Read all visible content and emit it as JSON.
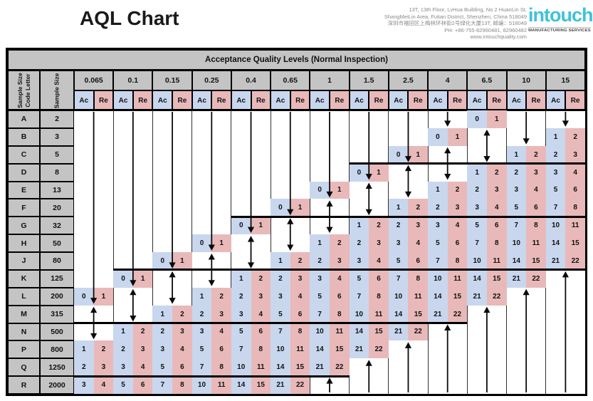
{
  "page": {
    "title": "AQL Chart"
  },
  "company": {
    "address_lines": [
      "13T, 13th Floor, LvHua Building, No 2 HuanLin St,",
      "ShangMeiLin Area, Futian District, Shenzhen, China 518049",
      "深圳市福田区上梅林环林街2号绿化大厦13T, 邮编：518049",
      "PH: +86-755-82960481, 82960482"
    ],
    "website": "www.intouchquality.com",
    "logo_text": "intouch",
    "logo_subtext": "MANUFACTURING SERVICES",
    "logo_color": "#3fc2d9"
  },
  "table": {
    "title": "Acceptance Quality Levels  (Normal Inspection)",
    "code_letter_header_lines": [
      "Sample Size",
      "Code Letter"
    ],
    "sample_size_header": "Sample Size",
    "ac_label": "Ac",
    "re_label": "Re",
    "aql_levels": [
      "0.065",
      "0.1",
      "0.15",
      "0.25",
      "0.4",
      "0.65",
      "1",
      "1.5",
      "2.5",
      "4",
      "6.5",
      "10",
      "15"
    ],
    "colors": {
      "ac_bg": "#c8d7ee",
      "re_bg": "#e9b9b9",
      "header_bg": "#c4c4c4",
      "line": "#0a0a0a"
    },
    "rows": [
      {
        "letter": "A",
        "size": "2",
        "cells": {
          "10": [
            0,
            1
          ]
        }
      },
      {
        "letter": "B",
        "size": "3",
        "cells": {
          "9": [
            0,
            1
          ],
          "12": [
            1,
            2
          ]
        }
      },
      {
        "letter": "C",
        "size": "5",
        "cells": {
          "8": [
            0,
            1
          ],
          "11": [
            1,
            2
          ],
          "12": [
            2,
            3
          ]
        }
      },
      {
        "letter": "D",
        "size": "8",
        "cells": {
          "7": [
            0,
            1
          ],
          "10": [
            1,
            2
          ],
          "11": [
            2,
            3
          ],
          "12": [
            3,
            4
          ]
        }
      },
      {
        "letter": "E",
        "size": "13",
        "cells": {
          "6": [
            0,
            1
          ],
          "9": [
            1,
            2
          ],
          "10": [
            2,
            3
          ],
          "11": [
            3,
            4
          ],
          "12": [
            5,
            6
          ]
        }
      },
      {
        "letter": "F",
        "size": "20",
        "cells": {
          "5": [
            0,
            1
          ],
          "8": [
            1,
            2
          ],
          "9": [
            2,
            3
          ],
          "10": [
            3,
            4
          ],
          "11": [
            5,
            6
          ],
          "12": [
            7,
            8
          ]
        }
      },
      {
        "letter": "G",
        "size": "32",
        "cells": {
          "4": [
            0,
            1
          ],
          "7": [
            1,
            2
          ],
          "8": [
            2,
            3
          ],
          "9": [
            3,
            4
          ],
          "10": [
            5,
            6
          ],
          "11": [
            7,
            8
          ],
          "12": [
            10,
            11
          ]
        }
      },
      {
        "letter": "H",
        "size": "50",
        "cells": {
          "3": [
            0,
            1
          ],
          "6": [
            1,
            2
          ],
          "7": [
            2,
            3
          ],
          "8": [
            3,
            4
          ],
          "9": [
            5,
            6
          ],
          "10": [
            7,
            8
          ],
          "11": [
            10,
            11
          ],
          "12": [
            14,
            15
          ]
        }
      },
      {
        "letter": "J",
        "size": "80",
        "cells": {
          "2": [
            0,
            1
          ],
          "5": [
            1,
            2
          ],
          "6": [
            2,
            3
          ],
          "7": [
            3,
            4
          ],
          "8": [
            5,
            6
          ],
          "9": [
            7,
            8
          ],
          "10": [
            10,
            11
          ],
          "11": [
            14,
            15
          ],
          "12": [
            21,
            22
          ]
        }
      },
      {
        "letter": "K",
        "size": "125",
        "cells": {
          "1": [
            0,
            1
          ],
          "4": [
            1,
            2
          ],
          "5": [
            2,
            3
          ],
          "6": [
            3,
            4
          ],
          "7": [
            5,
            6
          ],
          "8": [
            7,
            8
          ],
          "9": [
            10,
            11
          ],
          "10": [
            14,
            15
          ],
          "11": [
            21,
            22
          ]
        }
      },
      {
        "letter": "L",
        "size": "200",
        "cells": {
          "0": [
            0,
            1
          ],
          "3": [
            1,
            2
          ],
          "4": [
            2,
            3
          ],
          "5": [
            3,
            4
          ],
          "6": [
            5,
            6
          ],
          "7": [
            7,
            8
          ],
          "8": [
            10,
            11
          ],
          "9": [
            14,
            15
          ],
          "10": [
            21,
            22
          ]
        }
      },
      {
        "letter": "M",
        "size": "315",
        "cells": {
          "2": [
            1,
            2
          ],
          "3": [
            2,
            3
          ],
          "4": [
            3,
            4
          ],
          "5": [
            5,
            6
          ],
          "6": [
            7,
            8
          ],
          "7": [
            10,
            11
          ],
          "8": [
            14,
            15
          ],
          "9": [
            21,
            22
          ]
        }
      },
      {
        "letter": "N",
        "size": "500",
        "cells": {
          "1": [
            1,
            2
          ],
          "2": [
            2,
            3
          ],
          "3": [
            3,
            4
          ],
          "4": [
            5,
            6
          ],
          "5": [
            7,
            8
          ],
          "6": [
            10,
            11
          ],
          "7": [
            14,
            15
          ],
          "8": [
            21,
            22
          ]
        }
      },
      {
        "letter": "P",
        "size": "800",
        "cells": {
          "0": [
            1,
            2
          ],
          "1": [
            2,
            3
          ],
          "2": [
            3,
            4
          ],
          "3": [
            5,
            6
          ],
          "4": [
            7,
            8
          ],
          "5": [
            10,
            11
          ],
          "6": [
            14,
            15
          ],
          "7": [
            21,
            22
          ]
        }
      },
      {
        "letter": "Q",
        "size": "1250",
        "cells": {
          "0": [
            2,
            3
          ],
          "1": [
            3,
            4
          ],
          "2": [
            5,
            6
          ],
          "3": [
            7,
            8
          ],
          "4": [
            10,
            11
          ],
          "5": [
            14,
            15
          ],
          "6": [
            21,
            22
          ]
        }
      },
      {
        "letter": "R",
        "size": "2000",
        "cells": {
          "0": [
            3,
            4
          ],
          "1": [
            5,
            6
          ],
          "2": [
            7,
            8
          ],
          "3": [
            10,
            11
          ],
          "4": [
            14,
            15
          ],
          "5": [
            21,
            22
          ]
        }
      }
    ],
    "arrows": {
      "down": [
        {
          "col": 0,
          "rows": [
            0,
            10
          ]
        },
        {
          "col": 1,
          "rows": [
            0,
            9
          ]
        },
        {
          "col": 2,
          "rows": [
            0,
            8
          ]
        },
        {
          "col": 3,
          "rows": [
            0,
            7
          ]
        },
        {
          "col": 4,
          "rows": [
            0,
            6
          ]
        },
        {
          "col": 5,
          "rows": [
            0,
            5
          ]
        },
        {
          "col": 6,
          "rows": [
            0,
            4
          ]
        },
        {
          "col": 7,
          "rows": [
            0,
            3
          ]
        },
        {
          "col": 8,
          "rows": [
            0,
            2
          ]
        },
        {
          "col": 9,
          "rows": [
            0,
            0
          ]
        },
        {
          "col": 11,
          "rows": [
            0,
            1
          ]
        },
        {
          "col": 12,
          "rows": [
            0,
            0
          ]
        }
      ],
      "double": [
        {
          "col": 0,
          "rows": [
            11,
            12
          ]
        },
        {
          "col": 1,
          "rows": [
            10,
            11
          ]
        },
        {
          "col": 2,
          "rows": [
            9,
            10
          ]
        },
        {
          "col": 3,
          "rows": [
            8,
            9
          ]
        },
        {
          "col": 4,
          "rows": [
            7,
            8
          ]
        },
        {
          "col": 5,
          "rows": [
            6,
            7
          ]
        },
        {
          "col": 6,
          "rows": [
            5,
            6
          ]
        },
        {
          "col": 7,
          "rows": [
            4,
            5
          ]
        },
        {
          "col": 8,
          "rows": [
            3,
            4
          ]
        },
        {
          "col": 9,
          "rows": [
            2,
            3
          ]
        },
        {
          "col": 10,
          "rows": [
            1,
            2
          ]
        }
      ],
      "up": [
        {
          "col": 6,
          "rows": [
            15,
            15
          ]
        },
        {
          "col": 7,
          "rows": [
            14,
            15
          ]
        },
        {
          "col": 8,
          "rows": [
            13,
            15
          ]
        },
        {
          "col": 9,
          "rows": [
            12,
            15
          ]
        },
        {
          "col": 10,
          "rows": [
            11,
            15
          ]
        },
        {
          "col": 11,
          "rows": [
            10,
            15
          ]
        },
        {
          "col": 12,
          "rows": [
            9,
            15
          ]
        }
      ]
    },
    "step_lines": [
      {
        "above_row": 3,
        "from_col": 7,
        "to_col": 13
      },
      {
        "above_row": 6,
        "from_col": 4,
        "to_col": 13
      },
      {
        "above_row": 9,
        "from_col": 1,
        "to_col": 13
      },
      {
        "above_row": 12,
        "from_col": 0,
        "to_col": 10
      },
      {
        "above_row": 15,
        "from_col": 0,
        "to_col": 7
      }
    ]
  }
}
